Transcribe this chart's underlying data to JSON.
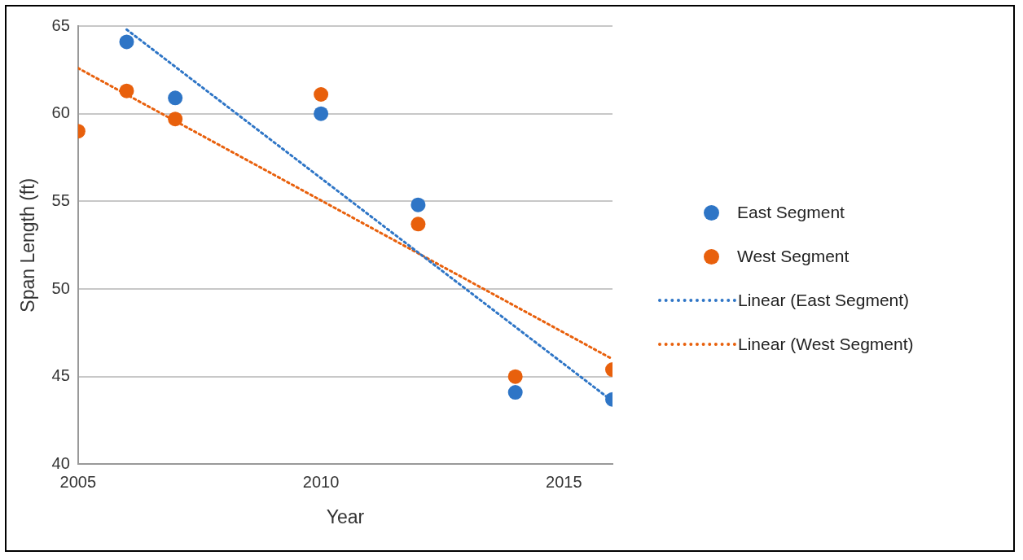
{
  "chart_data": {
    "type": "scatter",
    "xlabel": "Year",
    "ylabel": "Span Length (ft)",
    "xlim": [
      2005,
      2016
    ],
    "xticks": [
      2005,
      2010,
      2015
    ],
    "ylim": [
      40,
      65
    ],
    "yticks": [
      40,
      45,
      50,
      55,
      60,
      65
    ],
    "grid": "y",
    "legend": "right",
    "marker": "circle",
    "series": [
      {
        "name": "East Segment",
        "color": "#2e75c6",
        "x": [
          2006,
          2007,
          2010,
          2012,
          2014,
          2016
        ],
        "values": [
          64.1,
          60.9,
          60.0,
          54.8,
          44.1,
          43.7
        ]
      },
      {
        "name": "West Segment",
        "color": "#e8600c",
        "x": [
          2005,
          2006,
          2007,
          2010,
          2012,
          2014,
          2016
        ],
        "values": [
          59.0,
          61.3,
          59.7,
          61.1,
          53.7,
          45.0,
          45.4
        ]
      },
      {
        "name": "Linear (East Segment)",
        "type": "line",
        "line_style": "dotted",
        "marker": "none",
        "color": "#2e75c6",
        "x": [
          2006,
          2016
        ],
        "values": [
          64.8,
          43.6
        ]
      },
      {
        "name": "Linear (West Segment)",
        "type": "line",
        "line_style": "dotted",
        "marker": "none",
        "color": "#e8600c",
        "x": [
          2005,
          2016
        ],
        "values": [
          62.6,
          46.0
        ]
      }
    ]
  }
}
